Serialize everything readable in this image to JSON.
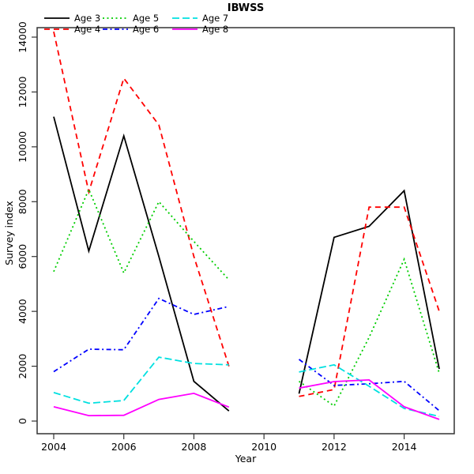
{
  "title": "IBWSS",
  "chart_data": {
    "type": "line",
    "title": "IBWSS",
    "xlabel": "Year",
    "ylabel": "Survey index",
    "x": [
      2004,
      2005,
      2006,
      2007,
      2008,
      2009,
      2010,
      2011,
      2012,
      2013,
      2014,
      2015
    ],
    "x_ticks": [
      2004,
      2006,
      2008,
      2010,
      2012,
      2014
    ],
    "y_ticks": [
      0,
      2000,
      4000,
      6000,
      8000,
      10000,
      12000,
      14000
    ],
    "xlim": [
      2003.5,
      2015.45
    ],
    "ylim": [
      -450,
      14350
    ],
    "grid": false,
    "legend_position": "topleft",
    "note_gap": "no data for 2010 - all lines broken between 2009 and 2011",
    "series": [
      {
        "name": "Age 3",
        "color": "#000000",
        "linetype": "solid",
        "values": [
          11100,
          6200,
          10400,
          6000,
          1450,
          370,
          null,
          1000,
          6700,
          7100,
          8400,
          1900
        ]
      },
      {
        "name": "Age 4",
        "color": "#ff0000",
        "linetype": "dashed",
        "values": [
          14200,
          8350,
          12500,
          10800,
          6000,
          2000,
          null,
          900,
          1150,
          7800,
          7800,
          4000
        ]
      },
      {
        "name": "Age 5",
        "color": "#00cd00",
        "linetype": "dotted",
        "values": [
          5450,
          8450,
          5400,
          8000,
          6550,
          5150,
          null,
          1450,
          550,
          3050,
          5900,
          1750
        ]
      },
      {
        "name": "Age 6",
        "color": "#0000ff",
        "linetype": "dotdash",
        "values": [
          1800,
          2620,
          2600,
          4470,
          3890,
          4180,
          null,
          2250,
          1300,
          1360,
          1450,
          380
        ]
      },
      {
        "name": "Age 7",
        "color": "#00e0e0",
        "linetype": "longdash",
        "values": [
          1040,
          650,
          750,
          2330,
          2100,
          2050,
          null,
          1790,
          2050,
          1270,
          460,
          170
        ]
      },
      {
        "name": "Age 8",
        "color": "#ff00ff",
        "linetype": "solid",
        "values": [
          520,
          200,
          210,
          790,
          1010,
          510,
          null,
          1200,
          1440,
          1500,
          520,
          60
        ]
      }
    ]
  }
}
